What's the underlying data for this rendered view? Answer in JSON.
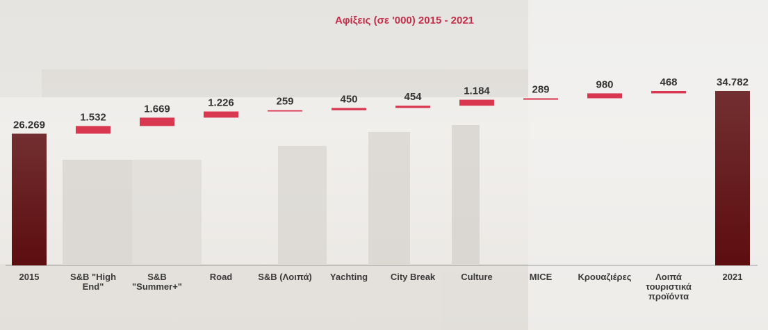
{
  "chart_data": {
    "type": "waterfall",
    "title": "Αφίξεις (σε '000) 2015 - 2021",
    "categories": [
      "2015",
      "S&B \"High End\"",
      "S&B \"Summer+\"",
      "Road",
      "S&B (Λοιπά)",
      "Yachting",
      "City Break",
      "Culture",
      "MICE",
      "Κρουαζιέρες",
      "Λοιπά τουριστικά προϊόντα",
      "2021"
    ],
    "values": [
      26269,
      1532,
      1669,
      1226,
      259,
      450,
      454,
      1184,
      289,
      980,
      468,
      34782
    ],
    "value_labels": [
      "26.269",
      "1.532",
      "1.669",
      "1.226",
      "259",
      "450",
      "454",
      "1.184",
      "289",
      "980",
      "468",
      "34.782"
    ],
    "total_color": "#5c0d0f",
    "increase_color": "#d9364f"
  }
}
